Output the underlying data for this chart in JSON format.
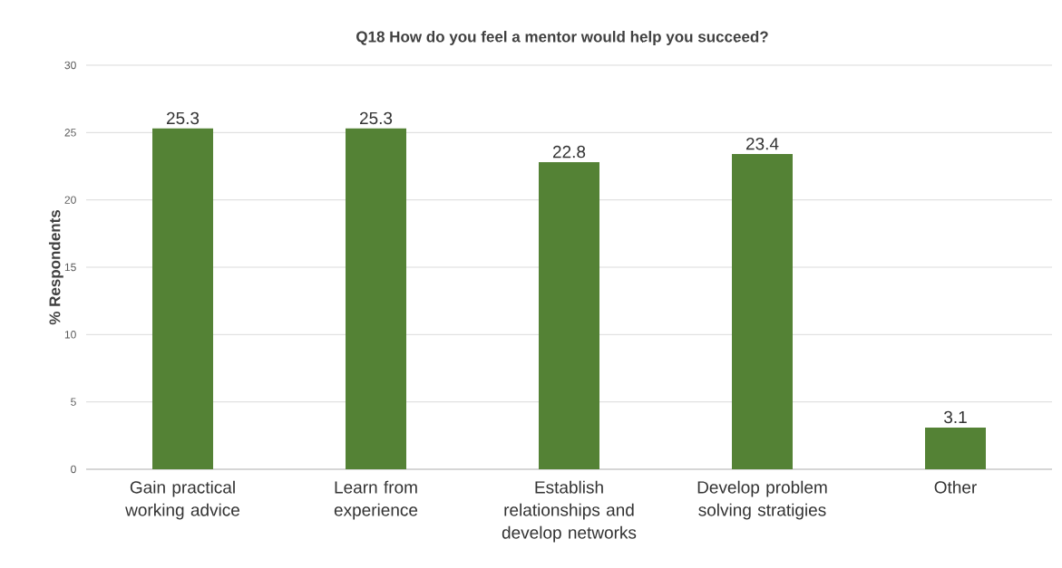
{
  "chart_data": {
    "type": "bar",
    "title": "Q18 How do you feel a mentor would help you succeed?",
    "ylabel": "% Respondents",
    "categories": [
      "Gain practical working advice",
      "Learn from experience",
      "Establish relationships and develop networks",
      "Develop problem solving stratigies",
      "Other"
    ],
    "values": [
      25.3,
      25.3,
      22.8,
      23.4,
      3.1
    ],
    "color": "#548235",
    "ylim": [
      0,
      30
    ],
    "yticks": [
      0,
      5,
      10,
      15,
      20,
      25,
      30
    ],
    "grid": "y",
    "data_labels": true
  }
}
